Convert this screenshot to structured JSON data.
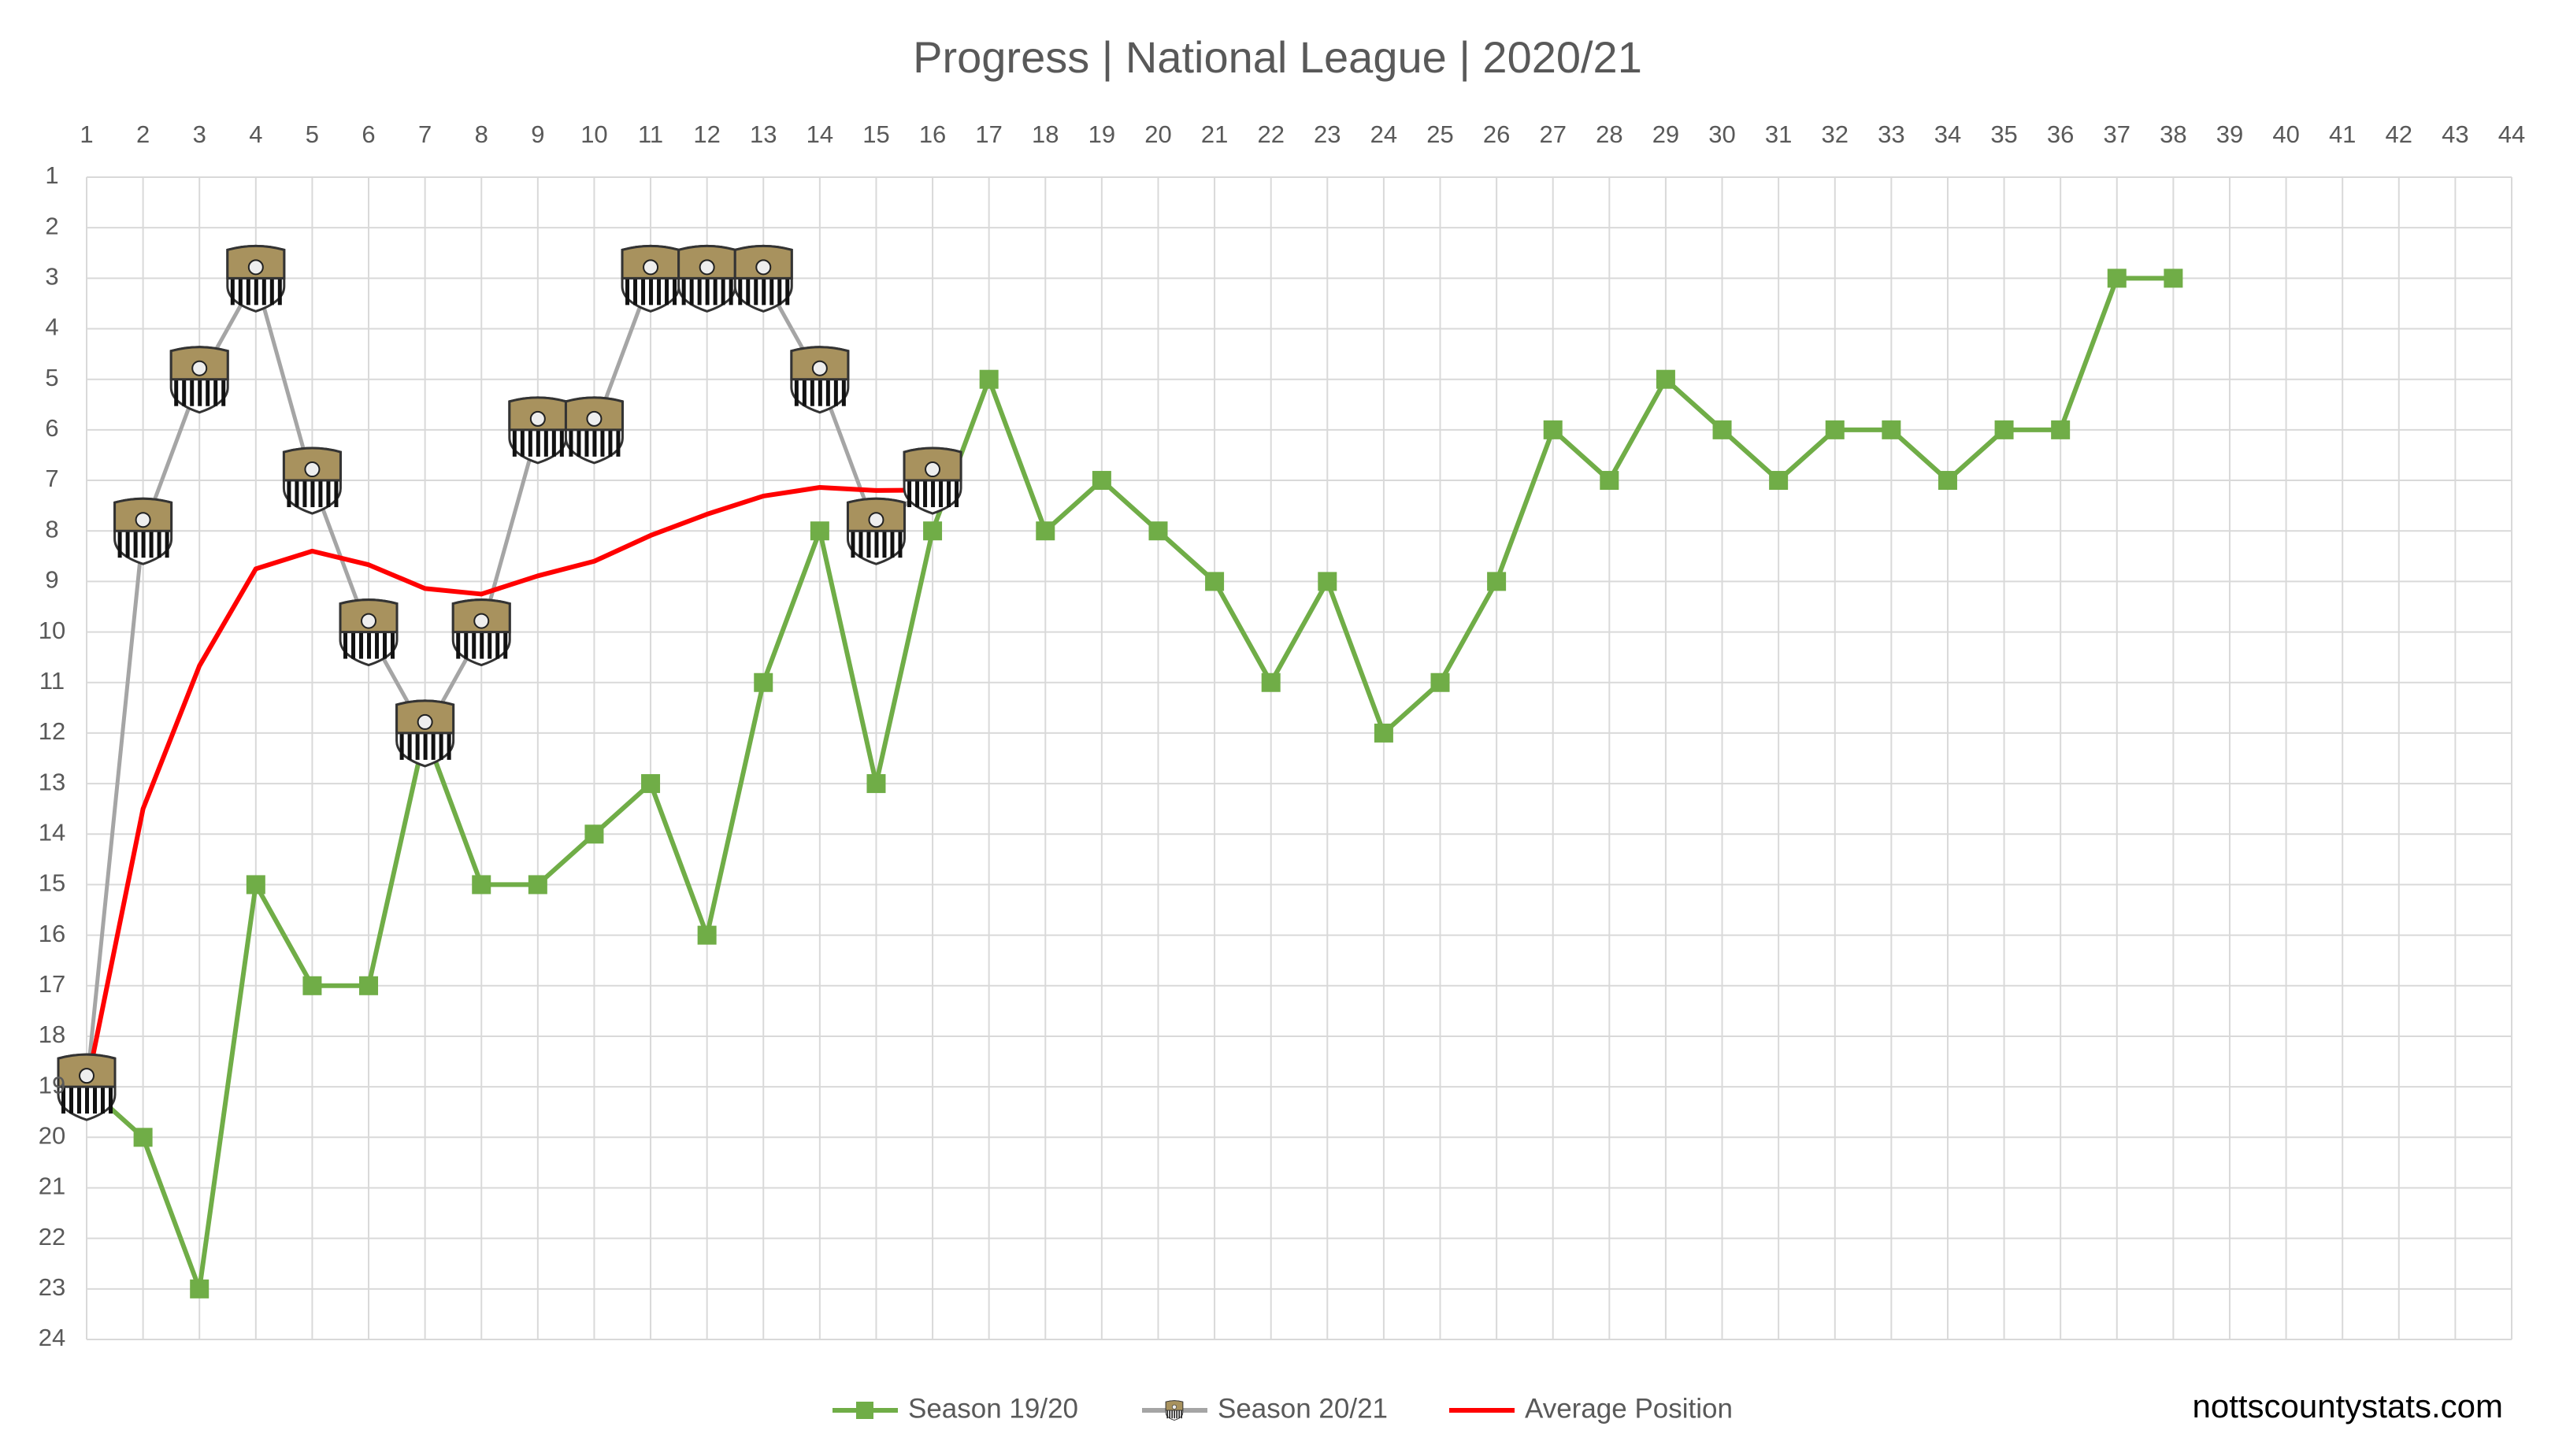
{
  "chart_data": {
    "type": "line",
    "title": "Progress | National League | 2020/21",
    "x": [
      1,
      2,
      3,
      4,
      5,
      6,
      7,
      8,
      9,
      10,
      11,
      12,
      13,
      14,
      15,
      16,
      17,
      18,
      19,
      20,
      21,
      22,
      23,
      24,
      25,
      26,
      27,
      28,
      29,
      30,
      31,
      32,
      33,
      34,
      35,
      36,
      37,
      38
    ],
    "series": [
      {
        "name": "Season 19/20",
        "color": "#70ad47",
        "marker": "square",
        "values": [
          19,
          20,
          23,
          15,
          17,
          17,
          12,
          15,
          15,
          14,
          13,
          16,
          11,
          8,
          13,
          8,
          5,
          8,
          7,
          8,
          9,
          11,
          9,
          12,
          11,
          9,
          6,
          7,
          5,
          6,
          7,
          6,
          6,
          7,
          6,
          6,
          3,
          3
        ]
      },
      {
        "name": "Season 20/21",
        "color": "#a5a5a5",
        "marker": "badge",
        "values": [
          19,
          8,
          5,
          3,
          7,
          10,
          12,
          10,
          6,
          6,
          3,
          3,
          3,
          5,
          8,
          7,
          null,
          null,
          null,
          null,
          null,
          null,
          null,
          null,
          null,
          null,
          null,
          null,
          null,
          null,
          null,
          null,
          null,
          null,
          null,
          null,
          null,
          null
        ]
      },
      {
        "name": "Average Position",
        "color": "#ff0000",
        "marker": "none",
        "values": [
          19,
          13.5,
          10.67,
          8.75,
          8.4,
          8.67,
          9.14,
          9.25,
          8.89,
          8.6,
          8.09,
          7.67,
          7.31,
          7.14,
          7.2,
          7.19,
          null,
          null,
          null,
          null,
          null,
          null,
          null,
          null,
          null,
          null,
          null,
          null,
          null,
          null,
          null,
          null,
          null,
          null,
          null,
          null,
          null,
          null
        ]
      }
    ],
    "xlim": [
      1,
      44
    ],
    "xticks": [
      1,
      2,
      3,
      4,
      5,
      6,
      7,
      8,
      9,
      10,
      11,
      12,
      13,
      14,
      15,
      16,
      17,
      18,
      19,
      20,
      21,
      22,
      23,
      24,
      25,
      26,
      27,
      28,
      29,
      30,
      31,
      32,
      33,
      34,
      35,
      36,
      37,
      38,
      39,
      40,
      41,
      42,
      43,
      44
    ],
    "ylim": [
      24,
      1
    ],
    "yticks": [
      1,
      2,
      3,
      4,
      5,
      6,
      7,
      8,
      9,
      10,
      11,
      12,
      13,
      14,
      15,
      16,
      17,
      18,
      19,
      20,
      21,
      22,
      23,
      24
    ],
    "grid": true,
    "legend": "bottom",
    "source": "nottscountystats.com"
  }
}
